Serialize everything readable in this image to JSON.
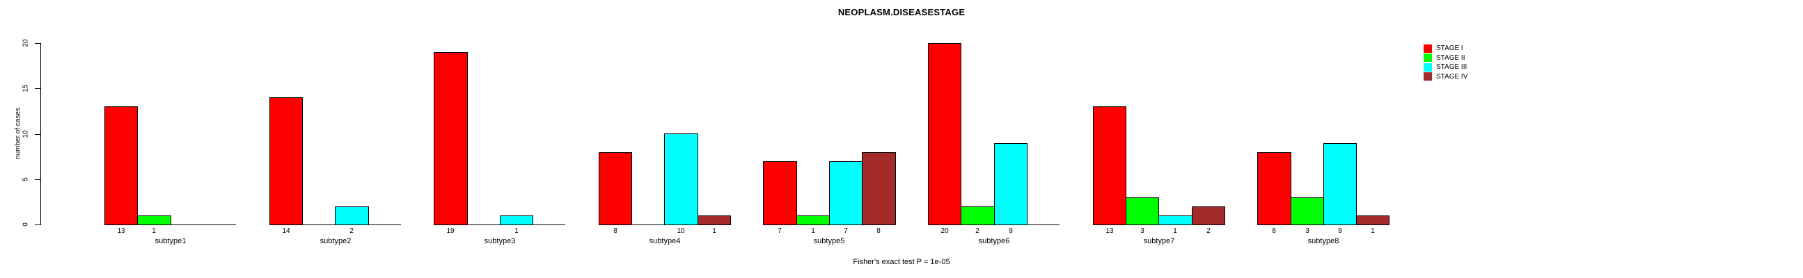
{
  "title": "NEOPLASM.DISEASESTAGE",
  "caption": "Fisher's exact test P = 1e-05",
  "chart_data": {
    "type": "bar",
    "title": "NEOPLASM.DISEASESTAGE",
    "xlabel": "",
    "ylabel": "number of cases",
    "ylim": [
      0,
      20
    ],
    "yticks": [
      0,
      5,
      10,
      15,
      20
    ],
    "grid": false,
    "legend_position": "topright",
    "annotation": "Fisher's exact test P = 1e-05",
    "categories": [
      "subtype1",
      "subtype2",
      "subtype3",
      "subtype4",
      "subtype5",
      "subtype6",
      "subtype7",
      "subtype8"
    ],
    "series": [
      {
        "name": "STAGE I",
        "color": "#ff0000",
        "values": [
          13,
          14,
          19,
          8,
          7,
          20,
          13,
          8
        ]
      },
      {
        "name": "STAGE II",
        "color": "#00ff00",
        "values": [
          1,
          0,
          0,
          0,
          1,
          2,
          3,
          3
        ]
      },
      {
        "name": "STAGE III",
        "color": "#00ffff",
        "values": [
          0,
          2,
          1,
          10,
          7,
          9,
          1,
          9
        ]
      },
      {
        "name": "STAGE IV",
        "color": "#a52a2a",
        "values": [
          0,
          0,
          0,
          1,
          8,
          0,
          2,
          1
        ]
      }
    ],
    "bar_count_labels": "shown under each non-zero bar"
  }
}
